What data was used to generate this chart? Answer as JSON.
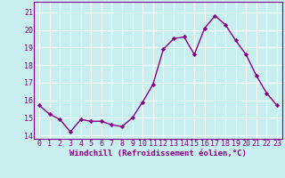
{
  "x": [
    0,
    1,
    2,
    3,
    4,
    5,
    6,
    7,
    8,
    9,
    10,
    11,
    12,
    13,
    14,
    15,
    16,
    17,
    18,
    19,
    20,
    21,
    22,
    23
  ],
  "y": [
    15.7,
    15.2,
    14.9,
    14.2,
    14.9,
    14.8,
    14.8,
    14.6,
    14.5,
    15.0,
    15.9,
    16.9,
    18.9,
    19.5,
    19.6,
    18.6,
    20.1,
    20.8,
    20.3,
    19.4,
    18.6,
    17.4,
    16.4,
    15.7
  ],
  "line_color": "#880088",
  "marker": "D",
  "marker_size": 2.2,
  "background_color": "#c8eef0",
  "grid_color": "#ffffff",
  "xlabel": "Windchill (Refroidissement éolien,°C)",
  "ylim": [
    13.8,
    21.6
  ],
  "xlim": [
    -0.5,
    23.5
  ],
  "yticks": [
    14,
    15,
    16,
    17,
    18,
    19,
    20,
    21
  ],
  "xticks": [
    0,
    1,
    2,
    3,
    4,
    5,
    6,
    7,
    8,
    9,
    10,
    11,
    12,
    13,
    14,
    15,
    16,
    17,
    18,
    19,
    20,
    21,
    22,
    23
  ],
  "xlabel_fontsize": 6.5,
  "tick_fontsize": 6.0,
  "line_width": 1.0
}
